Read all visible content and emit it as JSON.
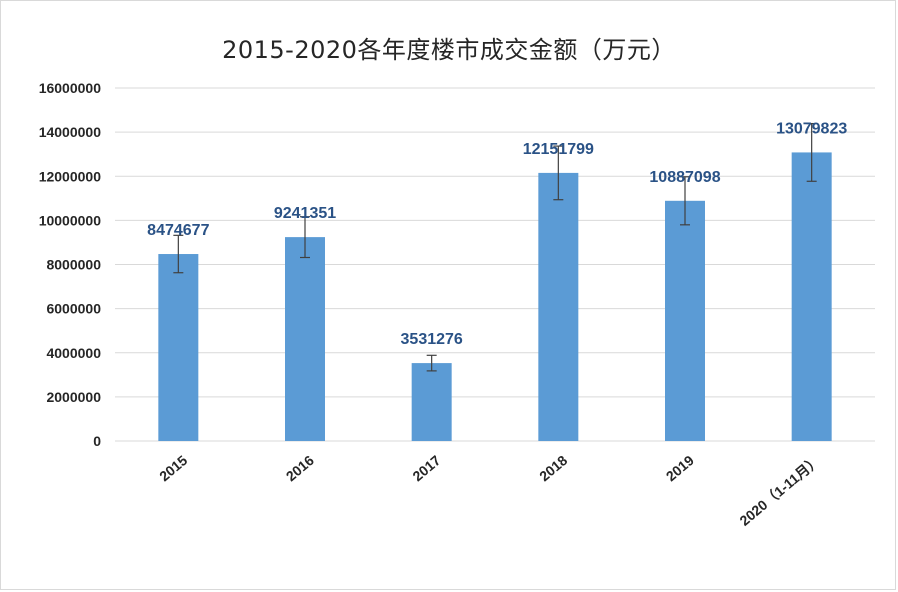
{
  "chart_data": {
    "type": "bar",
    "title": "2015-2020各年度楼市成交金额（万元）",
    "categories": [
      "2015",
      "2016",
      "2017",
      "2018",
      "2019",
      "2020（1-11月）"
    ],
    "values": [
      8474677,
      9241351,
      3531276,
      12151799,
      10887098,
      13079823
    ],
    "data_labels": [
      "8474677",
      "9241351",
      "3531276",
      "12151799",
      "10887098",
      "13079823"
    ],
    "error_bars": true,
    "error_fraction": 0.1,
    "ylim": [
      0,
      16000000
    ],
    "yticks": [
      0,
      2000000,
      4000000,
      6000000,
      8000000,
      10000000,
      12000000,
      14000000,
      16000000
    ],
    "ytick_labels": [
      "0",
      "2000000",
      "4000000",
      "6000000",
      "8000000",
      "10000000",
      "12000000",
      "14000000",
      "16000000"
    ],
    "xlabel": "",
    "ylabel": "",
    "grid": true,
    "legend": "none",
    "colors": {
      "bar": "#5b9bd5",
      "grid": "#d9d9d9",
      "label": "#2a5286",
      "error_bar": "#404040"
    }
  }
}
